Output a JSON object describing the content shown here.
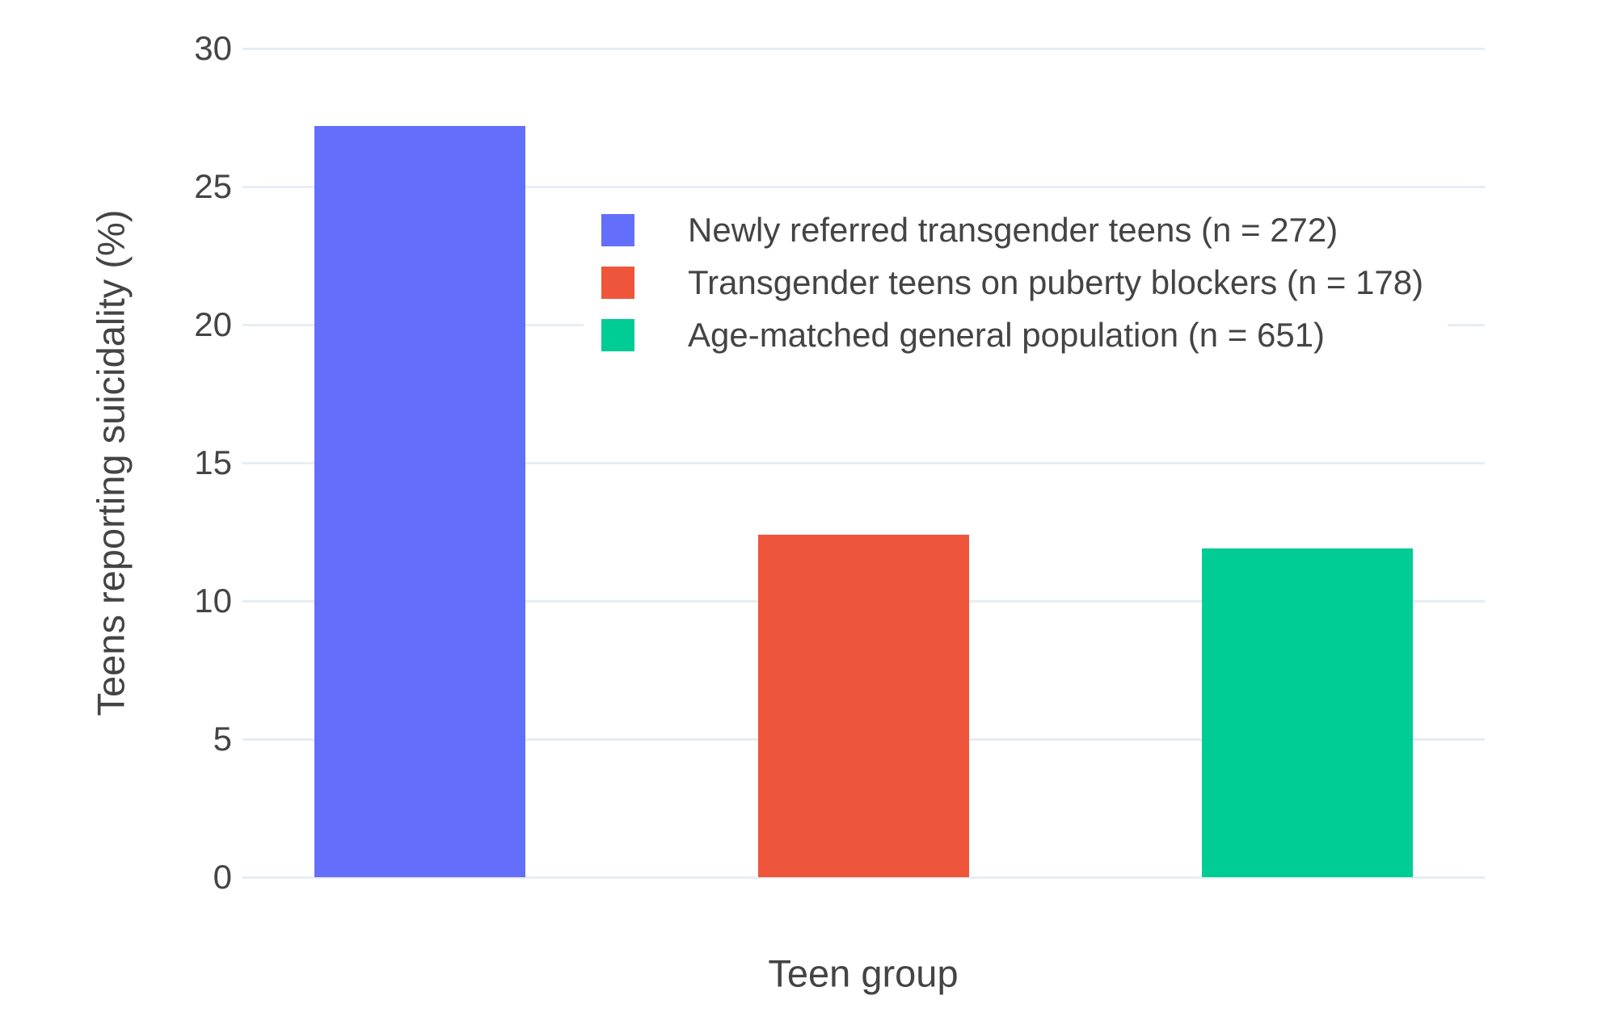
{
  "chart_data": {
    "type": "bar",
    "title": "",
    "xlabel": "Teen group",
    "ylabel": "Teens reporting suicidality (%)",
    "categories": [
      "Newly referred transgender teens (n = 272)",
      "Transgender teens on puberty blockers (n = 178)",
      "Age-matched general population (n = 651)"
    ],
    "values": [
      27.2,
      12.4,
      11.9
    ],
    "colors": [
      "#636EFA",
      "#EF553B",
      "#00CC96"
    ],
    "ylim": [
      0,
      30
    ],
    "yticks": [
      0,
      5,
      10,
      15,
      20,
      25,
      30
    ],
    "grid": true,
    "legend_position": "inside-top-right",
    "gridline_color": "#E7EDF5",
    "text_color": "#444444",
    "background_color": "#FFFFFF"
  }
}
